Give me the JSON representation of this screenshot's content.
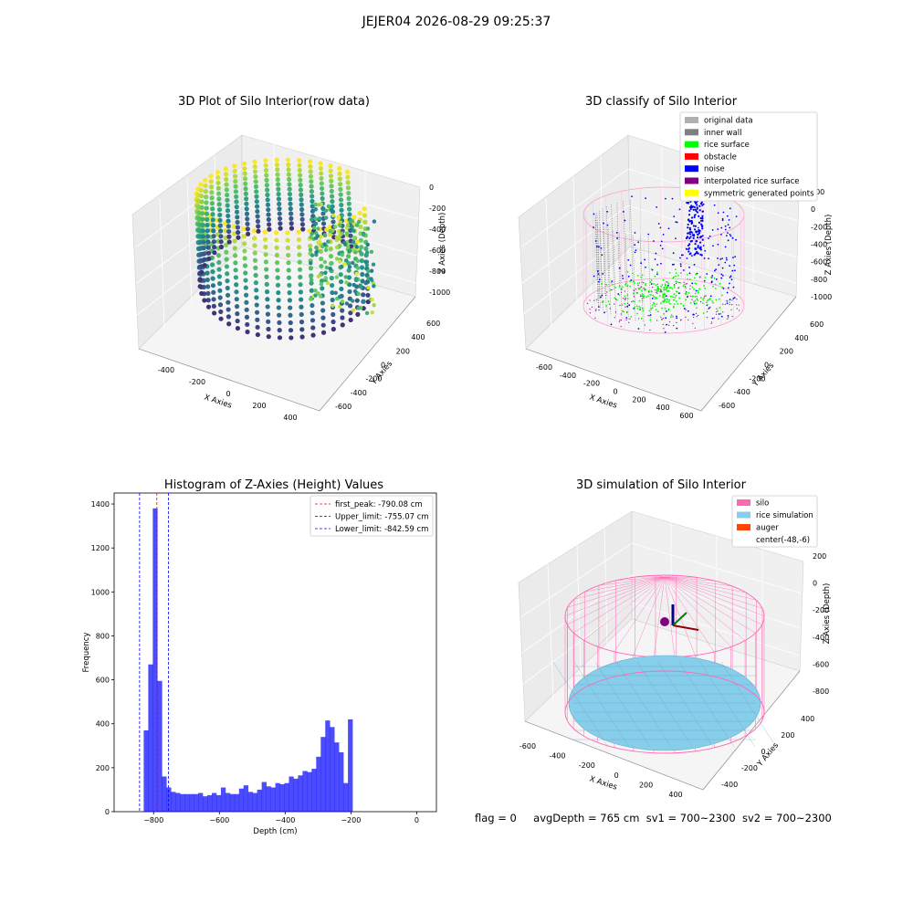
{
  "suptitle": "JEJER04 2026-08-29 09:25:37",
  "footer": {
    "flag": "flag = 0",
    "avg_depth": "avgDepth = 765 cm",
    "sv1": "sv1 = 700~2300",
    "sv2": "sv2 = 700~2300"
  },
  "chart_data": [
    {
      "type": "scatter3d",
      "title": "3D Plot of Silo Interior(row data)",
      "xlabel": "X Axies",
      "ylabel": "Y Axies",
      "zlabel": "Z Axies (Depth)",
      "x_ticks": [
        "-400",
        "-200",
        "0",
        "200",
        "400"
      ],
      "y_ticks": [
        "-600",
        "-400",
        "-200",
        "0",
        "200",
        "400",
        "600"
      ],
      "z_ticks": [
        "0",
        "-200",
        "-400",
        "-600",
        "-800",
        "-1000"
      ],
      "colormap": "viridis"
    },
    {
      "type": "scatter3d",
      "title": "3D classify of Silo Interior",
      "xlabel": "X Axies",
      "ylabel": "Y Axies",
      "zlabel": "Z Axies (Depth)",
      "x_ticks": [
        "-600",
        "-400",
        "-200",
        "0",
        "200",
        "400",
        "600"
      ],
      "y_ticks": [
        "-600",
        "-400",
        "-200",
        "0",
        "200",
        "400",
        "600"
      ],
      "z_ticks": [
        "200",
        "0",
        "-200",
        "-400",
        "-600",
        "-800",
        "-1000"
      ],
      "legend": [
        {
          "label": "original data",
          "color": "#b0b0b0"
        },
        {
          "label": "inner wall",
          "color": "#808080"
        },
        {
          "label": "rice surface",
          "color": "#00ff00"
        },
        {
          "label": "obstacle",
          "color": "#ff0000"
        },
        {
          "label": "noise",
          "color": "#0000ff"
        },
        {
          "label": "interpolated rice surface",
          "color": "#800080"
        },
        {
          "label": "symmetric generated points",
          "color": "#ffff00"
        }
      ]
    },
    {
      "type": "histogram",
      "title": "Histogram of Z-Axies (Height) Values",
      "xlabel": "Depth (cm)",
      "ylabel": "Frequency",
      "xlim": [
        -920,
        60
      ],
      "ylim": [
        0,
        1450
      ],
      "x_ticks": [
        -800,
        -600,
        -400,
        -200,
        0
      ],
      "y_ticks": [
        0,
        200,
        400,
        600,
        800,
        1000,
        1200,
        1400
      ],
      "bar_color": "#0000ff",
      "bin_start": -830,
      "bin_width": 13.8,
      "values": [
        370,
        670,
        1380,
        595,
        160,
        110,
        90,
        85,
        80,
        80,
        80,
        80,
        85,
        70,
        75,
        85,
        75,
        110,
        85,
        80,
        80,
        105,
        120,
        90,
        85,
        100,
        135,
        115,
        110,
        130,
        125,
        130,
        160,
        150,
        165,
        185,
        180,
        195,
        250,
        340,
        415,
        385,
        315,
        270,
        130,
        420
      ],
      "lines": [
        {
          "label": "first_peak: -790.08 cm",
          "x": -790.08,
          "color": "#ff0000"
        },
        {
          "label": "Upper_limit: -755.07 cm",
          "x": -755.07,
          "color": "#0000ff"
        },
        {
          "label": "Lower_limit: -842.59 cm",
          "x": -842.59,
          "color": "#0000ff"
        }
      ]
    },
    {
      "type": "surface3d",
      "title": "3D simulation of Silo Interior",
      "xlabel": "X Axies",
      "ylabel": "Y Axies",
      "zlabel": "Z Axies (Depth)",
      "x_ticks": [
        "-600",
        "-400",
        "-200",
        "0",
        "200",
        "400"
      ],
      "y_ticks": [
        "-400",
        "-200",
        "0",
        "200",
        "400"
      ],
      "z_ticks": [
        "200",
        "0",
        "-200",
        "-400",
        "-600",
        "-800"
      ],
      "legend": [
        {
          "label": "silo",
          "color": "#ff69b4"
        },
        {
          "label": "rice simulation",
          "color": "#87ceeb"
        },
        {
          "label": "auger",
          "color": "#ff4500"
        },
        {
          "label": "center(-48,-6)",
          "color": "#ffffff"
        }
      ]
    }
  ]
}
